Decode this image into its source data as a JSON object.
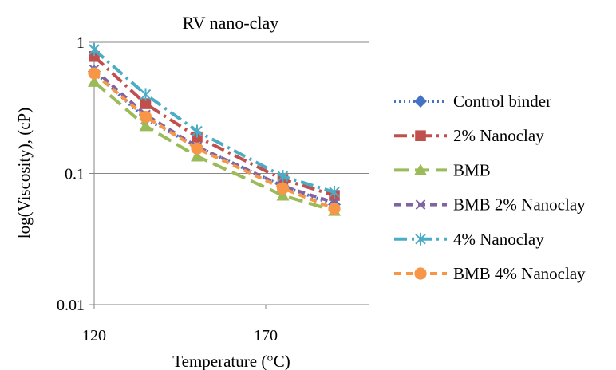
{
  "chart_data": {
    "type": "line",
    "title": "RV nano-clay",
    "xlabel": "Temperature (°C)",
    "ylabel": "log(Viscosity), (cP)",
    "x": [
      120,
      135,
      150,
      175,
      190
    ],
    "xlim": [
      120,
      200
    ],
    "xticks": [
      120,
      170
    ],
    "xtick_labels": [
      "120",
      "170"
    ],
    "ylim": [
      0.01,
      1
    ],
    "yscale": "log",
    "yticks": [
      0.01,
      0.1,
      1
    ],
    "ytick_labels": [
      "0.01",
      "0.1",
      "1"
    ],
    "grid": "horizontal",
    "legend_position": "right",
    "series": [
      {
        "name": "Control binder",
        "color": "#4472C4",
        "dash": "dotted",
        "marker": "diamond",
        "values": [
          0.6,
          0.26,
          0.16,
          0.08,
          0.058
        ]
      },
      {
        "name": "2% Nanoclay",
        "color": "#C0504D",
        "dash": "long-dash-dot",
        "marker": "square",
        "values": [
          0.78,
          0.34,
          0.19,
          0.09,
          0.068
        ]
      },
      {
        "name": "BMB",
        "color": "#9BBB59",
        "dash": "long-dash",
        "marker": "triangle",
        "values": [
          0.5,
          0.23,
          0.135,
          0.068,
          0.052
        ]
      },
      {
        "name": "BMB 2% Nanoclay",
        "color": "#8064A2",
        "dash": "dash",
        "marker": "x",
        "values": [
          0.62,
          0.28,
          0.16,
          0.08,
          0.06
        ]
      },
      {
        "name": "4% Nanoclay",
        "color": "#4BACC6",
        "dash": "long-dash-dot",
        "marker": "star",
        "values": [
          0.88,
          0.4,
          0.21,
          0.095,
          0.072
        ]
      },
      {
        "name": "BMB 4% Nanoclay",
        "color": "#F79646",
        "dash": "dash",
        "marker": "circle",
        "values": [
          0.58,
          0.27,
          0.155,
          0.077,
          0.054
        ]
      }
    ]
  }
}
